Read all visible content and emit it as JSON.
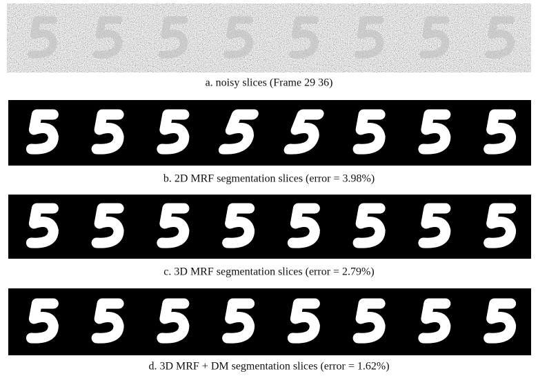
{
  "panels": [
    {
      "caption": "a. noisy slices (Frame 29 36)"
    },
    {
      "caption": "b. 2D MRF segmentation slices (error = 3.98%)"
    },
    {
      "caption": "c. 3D MRF segmentation slices (error = 2.79%)"
    },
    {
      "caption": "d. 3D MRF + DM segmentation slices (error = 1.62%)"
    }
  ]
}
